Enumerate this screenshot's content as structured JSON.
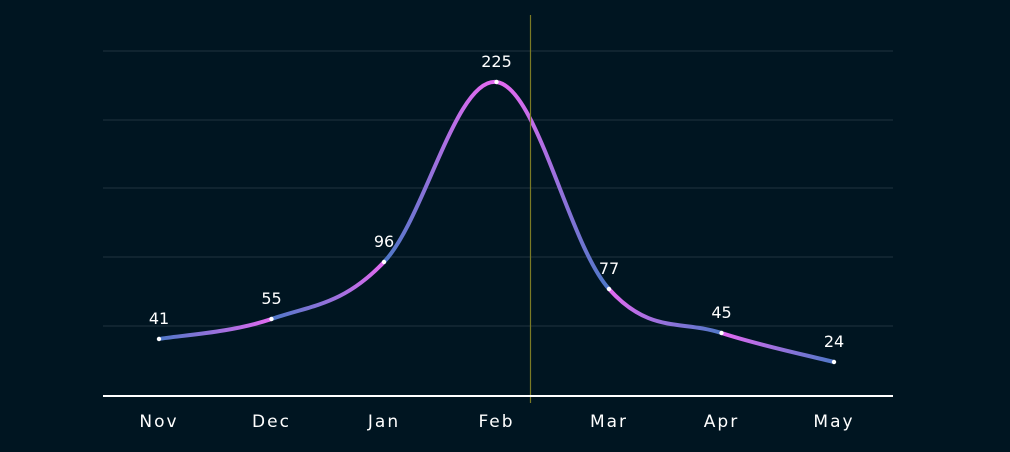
{
  "chart_data": {
    "type": "line",
    "categories": [
      "Nov",
      "Dec",
      "Jan",
      "Feb",
      "Mar",
      "Apr",
      "May"
    ],
    "values": [
      41,
      55,
      96,
      225,
      77,
      45,
      24
    ],
    "ylim": [
      0,
      250
    ],
    "grid": true,
    "colors": {
      "background": "#001521",
      "grid": "#20343f",
      "axis": "#ffffff",
      "line_primary": "#4f78c8",
      "line_accent": "#e36af1",
      "marker_line": "#7a7a25",
      "text": "#ffffff"
    }
  }
}
